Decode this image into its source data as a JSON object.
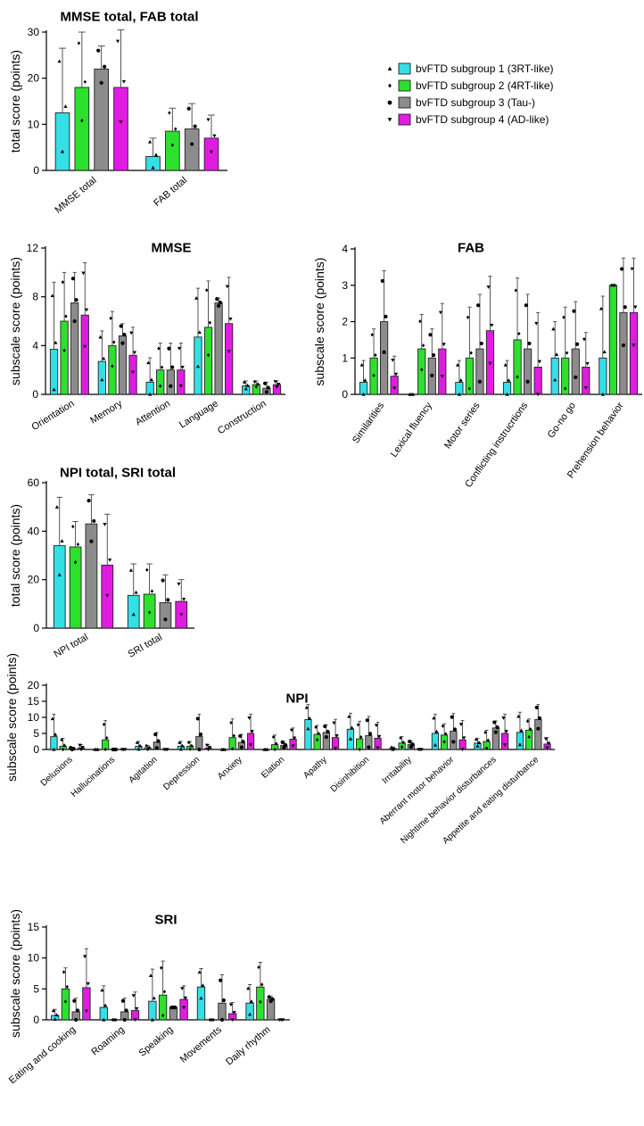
{
  "colors": {
    "g1": "#33e0e6",
    "g2": "#2ee02e",
    "g3": "#8c8c8c",
    "g4": "#e21be2"
  },
  "legend": {
    "entries": [
      {
        "label": "bvFTD subgroup 1 (3RT-like)",
        "color": "#33e0e6",
        "marker": "triangle-up"
      },
      {
        "label": "bvFTD subgroup 2 (4RT-like)",
        "color": "#2ee02e",
        "marker": "diamond"
      },
      {
        "label": "bvFTD subgroup 3 (Tau-)",
        "color": "#8c8c8c",
        "marker": "circle"
      },
      {
        "label": "bvFTD subgroup 4 (AD-like)",
        "color": "#e21be2",
        "marker": "triangle-down"
      }
    ]
  },
  "chart_data": [
    {
      "id": "mmse_fab_total",
      "type": "bar",
      "title": "MMSE total, FAB total",
      "ylabel": "total score (points)",
      "ylim": [
        0,
        30
      ],
      "yticks": [
        0,
        10,
        20,
        30
      ],
      "categories": [
        "MMSE total",
        "FAB total"
      ],
      "series": [
        {
          "name": "bvFTD subgroup 1 (3RT-like)",
          "values": [
            12.5,
            3
          ],
          "error": [
            14,
            4
          ]
        },
        {
          "name": "bvFTD subgroup 2 (4RT-like)",
          "values": [
            18,
            8.5
          ],
          "error": [
            12,
            5
          ]
        },
        {
          "name": "bvFTD subgroup 3 (Tau-)",
          "values": [
            22,
            9
          ],
          "error": [
            5,
            5.5
          ]
        },
        {
          "name": "bvFTD subgroup 4 (AD-like)",
          "values": [
            18,
            7
          ],
          "error": [
            12.5,
            5
          ]
        }
      ]
    },
    {
      "id": "mmse_sub",
      "type": "bar",
      "title": "MMSE",
      "ylabel": "subscale score (points)",
      "ylim": [
        0,
        12
      ],
      "yticks": [
        0,
        4,
        8,
        12
      ],
      "categories": [
        "Orientation",
        "Memory",
        "Attention",
        "Language",
        "Construction"
      ],
      "series": [
        {
          "name": "bvFTD subgroup 1 (3RT-like)",
          "values": [
            3.7,
            2.7,
            1,
            4.7,
            0.7
          ],
          "error": [
            5.5,
            2.5,
            2,
            4,
            0.4
          ]
        },
        {
          "name": "bvFTD subgroup 2 (4RT-like)",
          "values": [
            6,
            4,
            2,
            5.5,
            0.8
          ],
          "error": [
            4,
            2.8,
            2.2,
            3.8,
            0.3
          ]
        },
        {
          "name": "bvFTD subgroup 3 (Tau-)",
          "values": [
            7.5,
            4.8,
            2,
            7.5,
            0.5
          ],
          "error": [
            2.5,
            1,
            2.2,
            0.4,
            0.5
          ]
        },
        {
          "name": "bvFTD subgroup 4 (AD-like)",
          "values": [
            6.5,
            3.2,
            2,
            5.8,
            0.8
          ],
          "error": [
            4.3,
            2.3,
            2.2,
            3.8,
            0.3
          ]
        }
      ]
    },
    {
      "id": "fab_sub",
      "type": "bar",
      "title": "FAB",
      "ylabel": "subscale score (points)",
      "ylim": [
        0,
        4
      ],
      "yticks": [
        0,
        1,
        2,
        3,
        4
      ],
      "categories": [
        "Similarities",
        "Lexical fluency",
        "Motor series",
        "Conflicting instrucrtions",
        "Go-no go",
        "Prehension behavior"
      ],
      "series": [
        {
          "name": "bvFTD subgroup 1 (3RT-like)",
          "values": [
            0.33,
            0,
            0.33,
            0.33,
            1,
            1
          ],
          "error": [
            0.6,
            0,
            0.6,
            0.6,
            1,
            1.7
          ]
        },
        {
          "name": "bvFTD subgroup 2 (4RT-like)",
          "values": [
            1,
            1.25,
            1,
            1.5,
            1,
            3
          ],
          "error": [
            0.8,
            0.95,
            1.4,
            1.7,
            1.4,
            0
          ]
        },
        {
          "name": "bvFTD subgroup 3 (Tau-)",
          "values": [
            2,
            1,
            1.25,
            1.25,
            1.25,
            2.25
          ],
          "error": [
            1.4,
            0.8,
            1.5,
            1.5,
            1.3,
            1.5
          ]
        },
        {
          "name": "bvFTD subgroup 4 (AD-like)",
          "values": [
            0.5,
            1.25,
            1.75,
            0.75,
            0.75,
            2.25
          ],
          "error": [
            0.55,
            1.25,
            1.5,
            1.5,
            0.95,
            1.5
          ]
        }
      ]
    },
    {
      "id": "npi_sri_total",
      "type": "bar",
      "title": "NPI total, SRI total",
      "ylabel": "total score (points)",
      "ylim": [
        0,
        60
      ],
      "yticks": [
        0,
        20,
        40,
        60
      ],
      "categories": [
        "NPI total",
        "SRI total"
      ],
      "series": [
        {
          "name": "bvFTD subgroup 1 (3RT-like)",
          "values": [
            34,
            13.5
          ],
          "error": [
            20,
            13
          ]
        },
        {
          "name": "bvFTD subgroup 2 (4RT-like)",
          "values": [
            33.5,
            14
          ],
          "error": [
            10.5,
            12.5
          ]
        },
        {
          "name": "bvFTD subgroup 3 (Tau-)",
          "values": [
            43,
            10.5
          ],
          "error": [
            12,
            11.5
          ]
        },
        {
          "name": "bvFTD subgroup 4 (AD-like)",
          "values": [
            26,
            11
          ],
          "error": [
            21,
            9
          ]
        }
      ]
    },
    {
      "id": "npi_sub",
      "type": "bar",
      "title": "NPI",
      "ylabel": "subscale score (points)",
      "ylim": [
        0,
        20
      ],
      "yticks": [
        0,
        5,
        10,
        15,
        20
      ],
      "categories": [
        "Delusions",
        "Hallucinations",
        "Agitation",
        "Depression",
        "Anxiety",
        "Elation",
        "Apathy",
        "Disinhibition",
        "Irritability",
        "Aberrant motor behavior",
        "Nightime behavior disturbances",
        "Appetite and eating disturbance"
      ],
      "series": [
        {
          "name": "bvFTD subgroup 1 (3RT-like)",
          "values": [
            4,
            0,
            1,
            1,
            0,
            0,
            9.3,
            6.3,
            0.3,
            5,
            2,
            5.3
          ],
          "error": [
            7,
            0,
            1.5,
            1.5,
            0,
            0,
            4.7,
            5,
            0.5,
            6,
            1.5,
            6.3
          ]
        },
        {
          "name": "bvFTD subgroup 2 (4RT-like)",
          "values": [
            1,
            3,
            0.5,
            1,
            3.7,
            1.5,
            4.7,
            3.3,
            2,
            4.5,
            2.5,
            6
          ],
          "error": [
            2.5,
            6,
            0.8,
            1.5,
            5.8,
            3,
            2.8,
            5.5,
            2,
            3.5,
            3.5,
            3.5
          ]
        },
        {
          "name": "bvFTD subgroup 3 (Tau-)",
          "values": [
            0.2,
            0,
            2.3,
            4,
            2.2,
            1.3,
            5.3,
            4.3,
            1.5,
            5.7,
            6.7,
            9.3
          ],
          "error": [
            0.4,
            0,
            3,
            7,
            2.5,
            1.2,
            2.4,
            6,
            1.2,
            5.5,
            2.2,
            4.7
          ]
        },
        {
          "name": "bvFTD subgroup 4 (AD-like)",
          "values": [
            0.5,
            0,
            0,
            0.5,
            5,
            3.2,
            3.7,
            3.5,
            0,
            3,
            5,
            1.7
          ],
          "error": [
            1,
            0,
            0,
            1,
            6,
            3.5,
            5.7,
            5,
            0,
            6,
            6,
            2
          ]
        }
      ]
    },
    {
      "id": "sri_sub",
      "type": "bar",
      "title": "SRI",
      "ylabel": "subscale score (points)",
      "ylim": [
        0,
        15
      ],
      "yticks": [
        0,
        5,
        10,
        15
      ],
      "categories": [
        "Eating and cooking",
        "Roaming",
        "Speaking",
        "Movements",
        "Daily rhythm"
      ],
      "series": [
        {
          "name": "bvFTD subgroup 1 (3RT-like)",
          "values": [
            0.7,
            2,
            3,
            5.3,
            2.7
          ],
          "error": [
            1,
            3.5,
            5.2,
            3,
            3
          ]
        },
        {
          "name": "bvFTD subgroup 2 (4RT-like)",
          "values": [
            5,
            0,
            4,
            0,
            5.3
          ],
          "error": [
            3.4,
            0,
            5.5,
            0,
            4
          ]
        },
        {
          "name": "bvFTD subgroup 3 (Tau-)",
          "values": [
            1.3,
            1.3,
            2,
            2.7,
            3.3
          ],
          "error": [
            2.2,
            2.2,
            0,
            4.6,
            0.5
          ]
        },
        {
          "name": "bvFTD subgroup 4 (AD-like)",
          "values": [
            5.2,
            1.5,
            3.3,
            1,
            0
          ],
          "error": [
            6.3,
            3,
            2.2,
            1.8,
            0
          ]
        }
      ]
    }
  ]
}
